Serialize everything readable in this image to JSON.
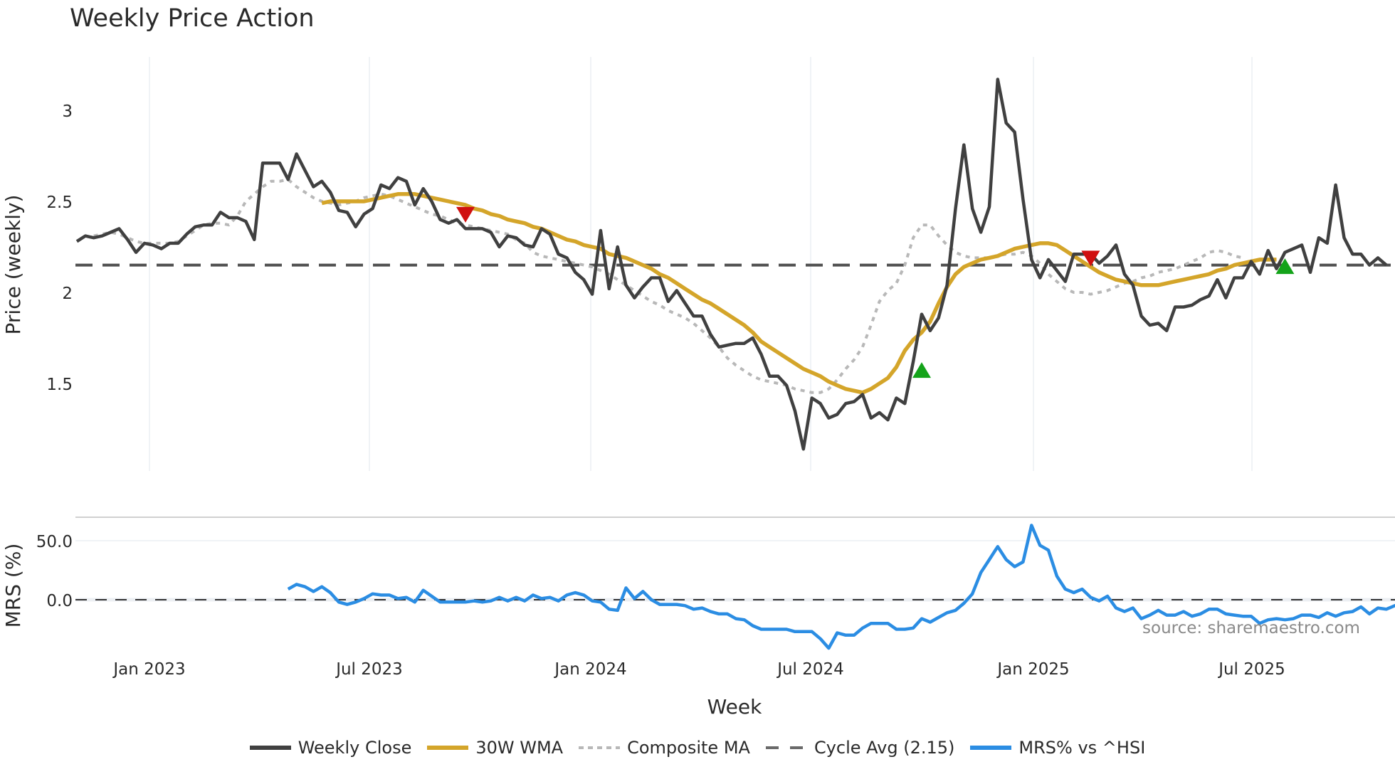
{
  "title": "Weekly Price Action",
  "source": "source: sharemaestro.com",
  "colors": {
    "close": "#404040",
    "wma": "#d4a52a",
    "composite": "#b8b8b8",
    "cycle": "#505050",
    "mrs": "#2b8de3",
    "buy": "#14a31a",
    "sell": "#d01010",
    "grid": "#eceff3"
  },
  "legend": [
    {
      "label": "Weekly Close",
      "style": "solid",
      "color": "#404040"
    },
    {
      "label": "30W WMA",
      "style": "solid",
      "color": "#d4a52a"
    },
    {
      "label": "Composite MA",
      "style": "dotted",
      "color": "#b8b8b8"
    },
    {
      "label": "Cycle Avg (2.15)",
      "style": "dashed",
      "color": "#505050"
    },
    {
      "label": "MRS% vs ^HSI",
      "style": "solid",
      "color": "#2b8de3"
    }
  ],
  "chart_data": [
    {
      "type": "line",
      "title": "Weekly Price Action",
      "xlabel": "Week",
      "ylabel": "Price (weekly)",
      "x_ticks": [
        "Jan 2023",
        "Jul 2023",
        "Jan 2024",
        "Jul 2024",
        "Jan 2025",
        "Jul 2025"
      ],
      "y_ticks": [
        1.5,
        2,
        2.5,
        3
      ],
      "ylim": [
        1.07,
        3.3
      ],
      "grid": true,
      "legend_position": "bottom",
      "start_week_offset": 0,
      "series": [
        {
          "name": "Weekly Close",
          "values": [
            2.28,
            2.31,
            2.3,
            2.31,
            2.33,
            2.35,
            2.29,
            2.22,
            2.27,
            2.26,
            2.24,
            2.27,
            2.27,
            2.32,
            2.36,
            2.37,
            2.37,
            2.44,
            2.41,
            2.41,
            2.39,
            2.29,
            2.71,
            2.71,
            2.71,
            2.62,
            2.76,
            2.67,
            2.58,
            2.61,
            2.55,
            2.45,
            2.44,
            2.36,
            2.43,
            2.46,
            2.59,
            2.57,
            2.63,
            2.61,
            2.48,
            2.57,
            2.5,
            2.4,
            2.38,
            2.4,
            2.35,
            2.35,
            2.35,
            2.33,
            2.25,
            2.31,
            2.3,
            2.26,
            2.25,
            2.35,
            2.32,
            2.21,
            2.19,
            2.11,
            2.07,
            1.99,
            2.34,
            2.02,
            2.25,
            2.04,
            1.97,
            2.03,
            2.08,
            2.08,
            1.95,
            2.01,
            1.94,
            1.87,
            1.87,
            1.77,
            1.7,
            1.71,
            1.72,
            1.72,
            1.75,
            1.66,
            1.54,
            1.54,
            1.49,
            1.35,
            1.14,
            1.42,
            1.39,
            1.31,
            1.33,
            1.39,
            1.4,
            1.44,
            1.31,
            1.34,
            1.3,
            1.42,
            1.39,
            1.62,
            1.88,
            1.79,
            1.86,
            2.04,
            2.46,
            2.81,
            2.46,
            2.33,
            2.47,
            3.17,
            2.93,
            2.88,
            2.51,
            2.18,
            2.08,
            2.18,
            2.12,
            2.06,
            2.21,
            2.21,
            2.21,
            2.16,
            2.2,
            2.26,
            2.1,
            2.04,
            1.87,
            1.82,
            1.83,
            1.79,
            1.92,
            1.92,
            1.93,
            1.96,
            1.98,
            2.07,
            1.97,
            2.08,
            2.08,
            2.17,
            2.1,
            2.23,
            2.13,
            2.22,
            2.24,
            2.26,
            2.11,
            2.3,
            2.27,
            2.59,
            2.3,
            2.21,
            2.21,
            2.15,
            2.19,
            2.15
          ]
        },
        {
          "name": "30W WMA",
          "start_index": 29,
          "values": [
            2.49,
            2.5,
            2.5,
            2.5,
            2.5,
            2.5,
            2.51,
            2.52,
            2.53,
            2.54,
            2.54,
            2.54,
            2.53,
            2.52,
            2.51,
            2.5,
            2.49,
            2.48,
            2.46,
            2.45,
            2.43,
            2.42,
            2.4,
            2.39,
            2.38,
            2.36,
            2.35,
            2.33,
            2.31,
            2.29,
            2.28,
            2.26,
            2.25,
            2.24,
            2.21,
            2.2,
            2.19,
            2.17,
            2.15,
            2.13,
            2.1,
            2.08,
            2.05,
            2.02,
            1.99,
            1.96,
            1.94,
            1.91,
            1.88,
            1.85,
            1.82,
            1.78,
            1.73,
            1.7,
            1.67,
            1.64,
            1.61,
            1.58,
            1.56,
            1.54,
            1.51,
            1.49,
            1.47,
            1.46,
            1.45,
            1.47,
            1.5,
            1.53,
            1.59,
            1.68,
            1.74,
            1.78,
            1.84,
            1.94,
            2.03,
            2.1,
            2.14,
            2.16,
            2.18,
            2.19,
            2.2,
            2.22,
            2.24,
            2.25,
            2.26,
            2.27,
            2.27,
            2.26,
            2.23,
            2.2,
            2.17,
            2.14,
            2.11,
            2.09,
            2.07,
            2.06,
            2.05,
            2.04,
            2.04,
            2.04,
            2.05,
            2.06,
            2.07,
            2.08,
            2.09,
            2.1,
            2.12,
            2.13,
            2.15,
            2.16,
            2.17,
            2.18,
            2.18,
            2.18
          ]
        },
        {
          "name": "Composite MA",
          "start_index": 2,
          "values": [
            2.31,
            2.32,
            2.33,
            2.32,
            2.3,
            2.28,
            2.27,
            2.27,
            2.27,
            2.27,
            2.28,
            2.31,
            2.34,
            2.37,
            2.38,
            2.38,
            2.37,
            2.42,
            2.5,
            2.54,
            2.58,
            2.61,
            2.61,
            2.62,
            2.58,
            2.55,
            2.52,
            2.5,
            2.49,
            2.48,
            2.49,
            2.5,
            2.52,
            2.53,
            2.54,
            2.53,
            2.51,
            2.49,
            2.47,
            2.45,
            2.43,
            2.42,
            2.4,
            2.38,
            2.37,
            2.36,
            2.35,
            2.34,
            2.33,
            2.32,
            2.29,
            2.27,
            2.22,
            2.2,
            2.19,
            2.18,
            2.17,
            2.16,
            2.15,
            2.14,
            2.12,
            2.1,
            2.07,
            2.04,
            2.01,
            1.98,
            1.95,
            1.93,
            1.9,
            1.88,
            1.86,
            1.83,
            1.79,
            1.75,
            1.7,
            1.64,
            1.6,
            1.57,
            1.54,
            1.52,
            1.51,
            1.5,
            1.49,
            1.47,
            1.46,
            1.45,
            1.45,
            1.47,
            1.52,
            1.58,
            1.63,
            1.7,
            1.82,
            1.95,
            2.01,
            2.05,
            2.15,
            2.3,
            2.37,
            2.37,
            2.31,
            2.26,
            2.22,
            2.2,
            2.19,
            2.19,
            2.19,
            2.2,
            2.21,
            2.21,
            2.22,
            2.2,
            2.16,
            2.1,
            2.06,
            2.02,
            2.0,
            2.0,
            1.99,
            2.0,
            2.01,
            2.03,
            2.05,
            2.06,
            2.08,
            2.09,
            2.11,
            2.12,
            2.13,
            2.15,
            2.17,
            2.19,
            2.22,
            2.23,
            2.22,
            2.2,
            2.19
          ]
        },
        {
          "name": "Cycle Avg (2.15)",
          "constant": 2.15
        }
      ],
      "markers": [
        {
          "type": "sell",
          "index": 46,
          "value": 2.43
        },
        {
          "type": "buy",
          "index": 100,
          "value": 1.57
        },
        {
          "type": "sell",
          "index": 120,
          "value": 2.19
        },
        {
          "type": "buy",
          "index": 143,
          "value": 2.14
        }
      ]
    },
    {
      "type": "line",
      "ylabel": "MRS (%)",
      "y_ticks": [
        0.0,
        50.0
      ],
      "ylim": [
        -45,
        70
      ],
      "zero_line": "dashed",
      "series": [
        {
          "name": "MRS% vs ^HSI",
          "start_index": 25,
          "values": [
            9,
            13,
            11,
            7,
            11,
            6,
            -2,
            -4,
            -2,
            1,
            5,
            4,
            4,
            1,
            2,
            -2,
            8,
            3,
            -2,
            -2,
            -2,
            -2,
            -1,
            -2,
            -1,
            2,
            -1,
            2,
            -1,
            4,
            1,
            2,
            -1,
            4,
            6,
            4,
            -1,
            -2,
            -8,
            -9,
            10,
            1,
            7,
            0,
            -4,
            -4,
            -4,
            -5,
            -8,
            -7,
            -10,
            -12,
            -12,
            -16,
            -17,
            -22,
            -25,
            -25,
            -25,
            -25,
            -27,
            -27,
            -27,
            -33,
            -41,
            -28,
            -30,
            -30,
            -24,
            -20,
            -20,
            -20,
            -25,
            -25,
            -24,
            -16,
            -19,
            -15,
            -11,
            -9,
            -3,
            5,
            23,
            34,
            45,
            34,
            28,
            32,
            63,
            46,
            42,
            20,
            9,
            6,
            9,
            2,
            -1,
            3,
            -7,
            -10,
            -7,
            -16,
            -13,
            -9,
            -13,
            -13,
            -10,
            -14,
            -12,
            -8,
            -8,
            -12,
            -13,
            -14,
            -14,
            -20,
            -17,
            -16,
            -17,
            -16,
            -13,
            -13,
            -15,
            -11,
            -14,
            -11,
            -10,
            -6,
            -12,
            -7,
            -8,
            -5,
            -5,
            -5,
            -10,
            -3,
            -7,
            5,
            -5,
            -12,
            -9,
            -7,
            -8,
            -10
          ]
        }
      ]
    }
  ],
  "axes": {
    "price_ylabel": "Price (weekly)",
    "mrs_ylabel": "MRS (%)",
    "xlabel": "Week",
    "x_ticks": [
      "Jan 2023",
      "Jul 2023",
      "Jan 2024",
      "Jul 2024",
      "Jan 2025",
      "Jul 2025"
    ],
    "price_ticks": [
      "3",
      "2.5",
      "2",
      "1.5"
    ],
    "mrs_ticks": [
      "50.0",
      "0.0"
    ]
  }
}
